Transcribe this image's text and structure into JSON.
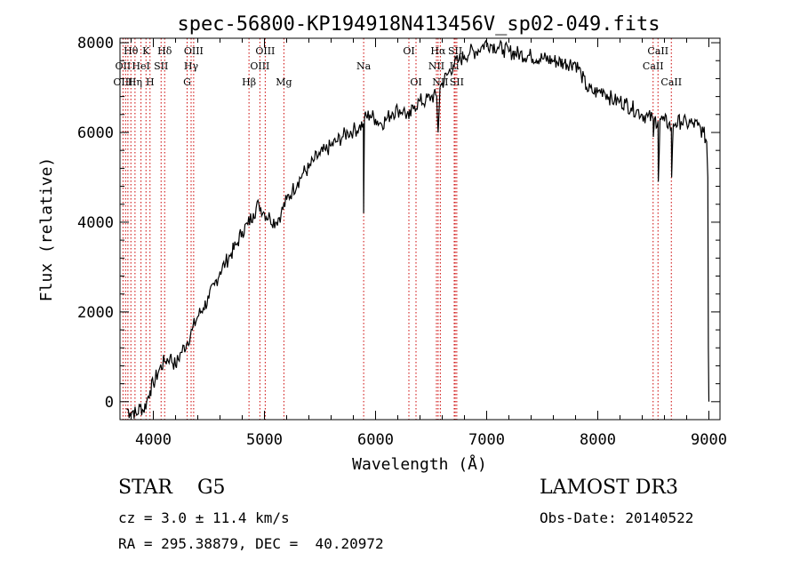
{
  "chart_data": {
    "type": "line",
    "title": "spec-56800-KP194918N413456V_sp02-049.fits",
    "xlabel": "Wavelength (Å)",
    "ylabel": "Flux (relative)",
    "xlim": [
      3700,
      9100
    ],
    "ylim": [
      -400,
      8100
    ],
    "xticks": [
      4000,
      5000,
      6000,
      7000,
      8000,
      9000
    ],
    "xtick_labels": [
      "4000",
      "5000",
      "6000",
      "7000",
      "8000",
      "9000"
    ],
    "yticks": [
      0,
      2000,
      4000,
      6000,
      8000
    ],
    "ytick_labels": [
      "0",
      "2000",
      "4000",
      "6000",
      "8000"
    ],
    "grid": false,
    "series": [
      {
        "name": "flux",
        "x": [
          3760,
          3790,
          3820,
          3850,
          3880,
          3910,
          3940,
          3970,
          4000,
          4050,
          4100,
          4150,
          4200,
          4250,
          4300,
          4350,
          4400,
          4450,
          4500,
          4550,
          4600,
          4650,
          4700,
          4750,
          4800,
          4850,
          4900,
          4950,
          5000,
          5050,
          5100,
          5150,
          5200,
          5250,
          5300,
          5350,
          5400,
          5450,
          5500,
          5550,
          5600,
          5650,
          5700,
          5750,
          5800,
          5850,
          5890,
          5893,
          5900,
          5950,
          6000,
          6050,
          6100,
          6150,
          6200,
          6250,
          6300,
          6350,
          6400,
          6450,
          6500,
          6550,
          6563,
          6580,
          6600,
          6650,
          6700,
          6750,
          6800,
          6850,
          6900,
          6950,
          7000,
          7050,
          7100,
          7150,
          7200,
          7300,
          7400,
          7500,
          7600,
          7700,
          7800,
          7850,
          7900,
          7950,
          8000,
          8050,
          8100,
          8150,
          8200,
          8250,
          8300,
          8350,
          8400,
          8450,
          8498,
          8500,
          8510,
          8542,
          8545,
          8560,
          8600,
          8640,
          8662,
          8665,
          8680,
          8700,
          8750,
          8800,
          8850,
          8900,
          8950,
          8980,
          8990,
          8995,
          9000
        ],
        "values": [
          -150,
          -250,
          -200,
          -300,
          -100,
          -200,
          0,
          250,
          400,
          700,
          900,
          1000,
          800,
          1100,
          1300,
          1600,
          1900,
          2100,
          2300,
          2600,
          2900,
          3100,
          3300,
          3500,
          3800,
          3950,
          4200,
          4400,
          4200,
          4100,
          4000,
          4200,
          4500,
          4700,
          4900,
          5100,
          5200,
          5400,
          5500,
          5600,
          5700,
          5800,
          5900,
          6000,
          6050,
          6100,
          6200,
          4200,
          6300,
          6400,
          6300,
          6200,
          6300,
          6450,
          6500,
          6500,
          6300,
          6600,
          6700,
          6700,
          6800,
          6800,
          6000,
          7000,
          7100,
          7300,
          7500,
          7600,
          7700,
          7800,
          7800,
          7900,
          8000,
          7950,
          7900,
          7850,
          7800,
          7750,
          7700,
          7650,
          7600,
          7550,
          7550,
          7300,
          7000,
          6900,
          6900,
          6950,
          6800,
          6700,
          6700,
          6650,
          6550,
          6500,
          6400,
          6350,
          6300,
          5900,
          6300,
          6250,
          4900,
          6300,
          6250,
          6200,
          6100,
          5000,
          6200,
          6200,
          6250,
          6200,
          6200,
          6150,
          6000,
          5800,
          5000,
          1200,
          0
        ]
      }
    ],
    "line_labels": [
      {
        "text": "Hθ",
        "row": 1,
        "at": 3798
      },
      {
        "text": "K",
        "row": 1,
        "at": 3934
      },
      {
        "text": "Hδ",
        "row": 1,
        "at": 4102
      },
      {
        "text": "OIII",
        "row": 1,
        "at": 4363
      },
      {
        "text": "OIII",
        "row": 1,
        "at": 5007
      },
      {
        "text": "OI",
        "row": 1,
        "at": 6300
      },
      {
        "text": "Hα",
        "row": 1,
        "at": 6563
      },
      {
        "text": "SII",
        "row": 1,
        "at": 6717
      },
      {
        "text": "CaII",
        "row": 1,
        "at": 8542
      },
      {
        "text": "OII",
        "row": 2,
        "at": 3727
      },
      {
        "text": "HeI",
        "row": 2,
        "at": 3889
      },
      {
        "text": "SII",
        "row": 2,
        "at": 4070
      },
      {
        "text": "Hγ",
        "row": 2,
        "at": 4340
      },
      {
        "text": "OIII",
        "row": 2,
        "at": 4959
      },
      {
        "text": "Na",
        "row": 2,
        "at": 5893
      },
      {
        "text": "NII",
        "row": 2,
        "at": 6548
      },
      {
        "text": "Li",
        "row": 2,
        "at": 6708
      },
      {
        "text": "CaII",
        "row": 2,
        "at": 8498
      },
      {
        "text": "OIII",
        "row": 3,
        "at": 3727
      },
      {
        "text": "Hη",
        "row": 3,
        "at": 3835
      },
      {
        "text": "H",
        "row": 3,
        "at": 3970
      },
      {
        "text": "G",
        "row": 3,
        "at": 4304
      },
      {
        "text": "Hβ",
        "row": 3,
        "at": 4861
      },
      {
        "text": "Mg",
        "row": 3,
        "at": 5175
      },
      {
        "text": "OI",
        "row": 3,
        "at": 6364
      },
      {
        "text": "NII",
        "row": 3,
        "at": 6583
      },
      {
        "text": "SII",
        "row": 3,
        "at": 6731
      },
      {
        "text": "CaII",
        "row": 3,
        "at": 8662
      }
    ],
    "line_markers": [
      3727,
      3750,
      3771,
      3798,
      3835,
      3889,
      3934,
      3970,
      4070,
      4102,
      4304,
      4340,
      4363,
      4861,
      4959,
      5007,
      5175,
      5893,
      6300,
      6364,
      6548,
      6563,
      6583,
      6708,
      6717,
      6731,
      8498,
      8542,
      8662
    ],
    "colors": {
      "line": "#000000",
      "marker": "#cc0000",
      "axis": "#000000",
      "background": "#ffffff"
    }
  },
  "footer": {
    "object_class": "STAR    G5",
    "survey": "LAMOST DR3",
    "cz": "cz = 3.0 ± 11.4 km/s",
    "obs_date": "Obs-Date: 20140522",
    "coords": "RA = 295.38879, DEC =  40.20972"
  }
}
